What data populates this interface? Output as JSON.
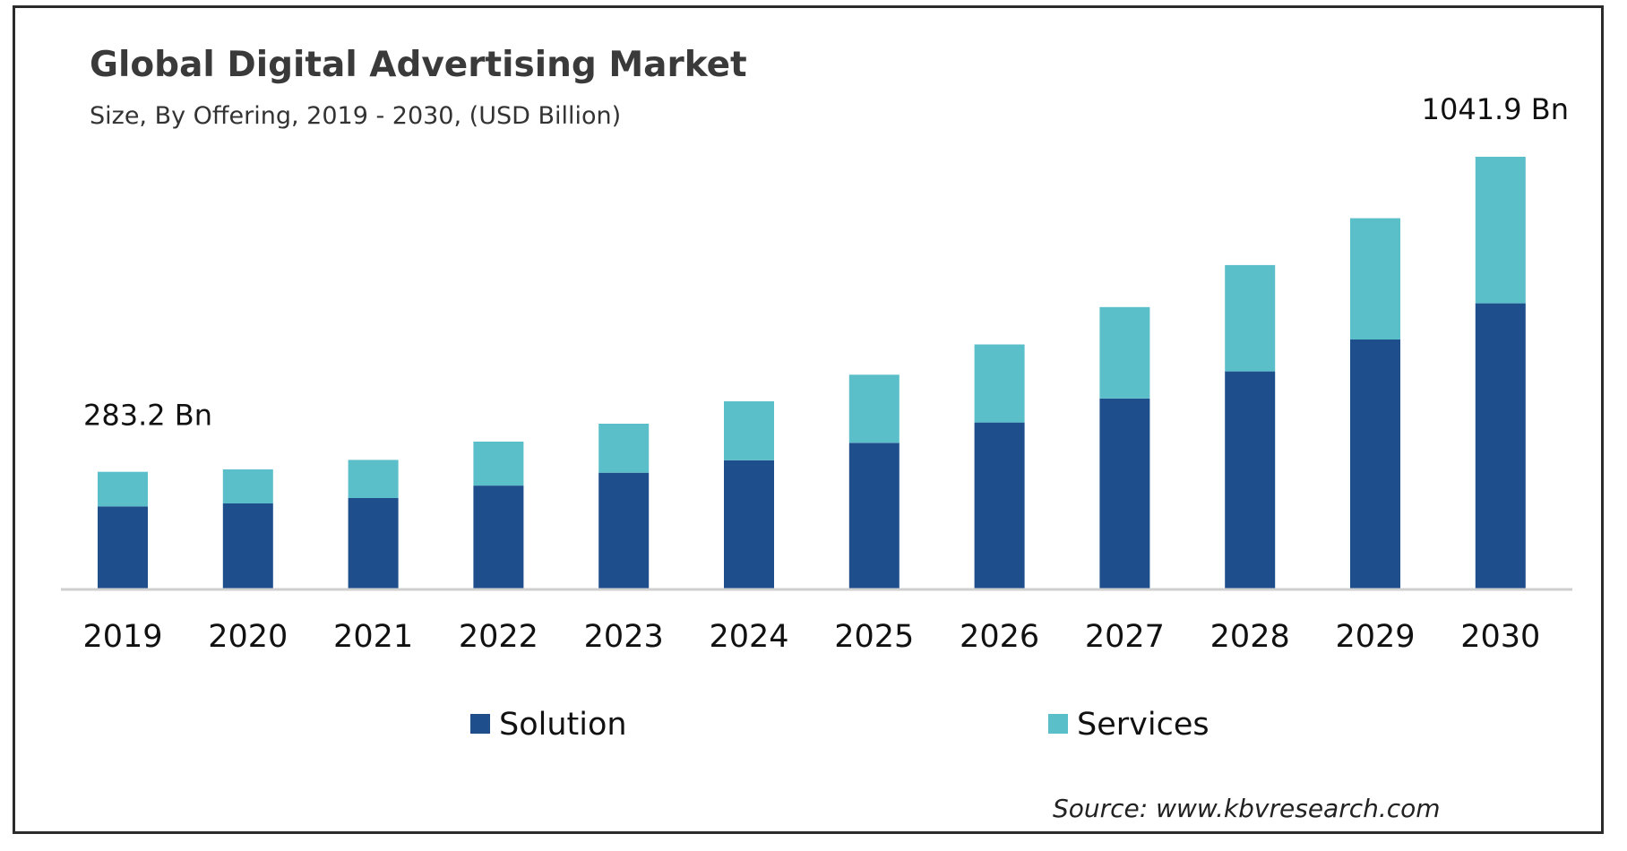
{
  "chart_data": {
    "type": "bar",
    "stacked": true,
    "title": "Global Digital Advertising Market",
    "subtitle": "Size, By Offering, 2019 - 2030, (USD Billion)",
    "xlabel": "",
    "ylabel": "",
    "categories": [
      "2019",
      "2020",
      "2021",
      "2022",
      "2023",
      "2024",
      "2025",
      "2026",
      "2027",
      "2028",
      "2029",
      "2030"
    ],
    "series": [
      {
        "name": "Solution",
        "color": "#1f4e8c",
        "values": [
          200,
          207,
          220,
          250,
          281,
          311,
          353,
          402,
          460,
          525,
          602,
          689
        ]
      },
      {
        "name": "Services",
        "color": "#5bbfca",
        "values": [
          83.2,
          82,
          92,
          106,
          118,
          142,
          164,
          188,
          220,
          256,
          292,
          352.9
        ]
      }
    ],
    "ylim": [
      0,
      1041.9
    ],
    "grid": false,
    "legend": "bottom-center",
    "annotations": [
      {
        "category": "2019",
        "text": "283.2 Bn"
      },
      {
        "category": "2030",
        "text": "1041.9 Bn"
      }
    ],
    "source": "Source: www.kbvresearch.com"
  }
}
